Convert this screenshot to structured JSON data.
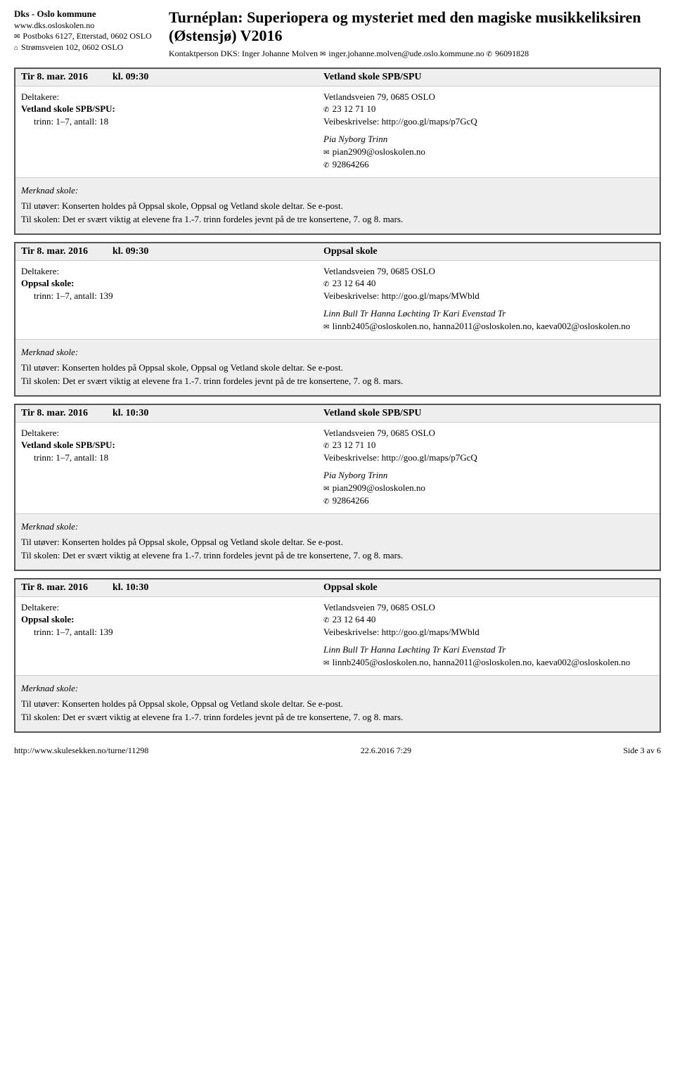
{
  "header": {
    "org_name": "Dks - Oslo kommune",
    "website": "www.dks.osloskolen.no",
    "postbox": "Postboks 6127, Etterstad, 0602 OSLO",
    "street": "Strømsveien 102, 0602 OSLO",
    "title": "Turnéplan: Superiopera og mysteriet med den magiske musikkeliksiren (Østensjø) V2016",
    "contact_label": "Kontaktperson DKS: Inger Johanne Molven",
    "contact_email": "inger.johanne.molven@ude.oslo.kommune.no",
    "contact_phone": "96091828"
  },
  "labels": {
    "deltakere": "Deltakere:",
    "merknad": "Merknad skole:"
  },
  "entries": [
    {
      "date": "Tir 8. mar. 2016",
      "time": "kl. 09:30",
      "school": "Vetland skole SPB/SPU",
      "school_line": "Vetland skole SPB/SPU:",
      "trinn": "trinn: 1–7, antall: 18",
      "address": "Vetlandsveien 79, 0685 OSLO",
      "phone": "23 12 71 10",
      "directions": "Veibeskrivelse: http://goo.gl/maps/p7GcQ",
      "contact_name": "Pia Nyborg Trinn",
      "contact_email": "pian2909@osloskolen.no",
      "contact_phone": "92864266",
      "note_performer": "Til utøver: Konserten holdes på Oppsal skole, Oppsal og Vetland skole deltar. Se e-post.",
      "note_school": "Til skolen: Det er svært viktig at elevene fra 1.-7. trinn fordeles jevnt på de tre konsertene, 7. og 8. mars."
    },
    {
      "date": "Tir 8. mar. 2016",
      "time": "kl. 09:30",
      "school": "Oppsal skole",
      "school_line": "Oppsal skole:",
      "trinn": "trinn: 1–7, antall: 139",
      "address": "Vetlandsveien 79, 0685 OSLO",
      "phone": "23 12 64 40",
      "directions": "Veibeskrivelse: http://goo.gl/maps/MWbld",
      "contact_name": "Linn Bull Tr Hanna Løchting Tr Kari Evenstad Tr",
      "contact_email": "linnb2405@osloskolen.no, hanna2011@osloskolen.no, kaeva002@osloskolen.no",
      "contact_phone": "",
      "note_performer": "Til utøver: Konserten holdes på Oppsal skole, Oppsal og Vetland skole deltar. Se e-post.",
      "note_school": "Til skolen: Det er svært viktig at elevene fra 1.-7. trinn fordeles jevnt på de tre konsertene, 7. og 8. mars."
    },
    {
      "date": "Tir 8. mar. 2016",
      "time": "kl. 10:30",
      "school": "Vetland skole SPB/SPU",
      "school_line": "Vetland skole SPB/SPU:",
      "trinn": "trinn: 1–7, antall: 18",
      "address": "Vetlandsveien 79, 0685 OSLO",
      "phone": "23 12 71 10",
      "directions": "Veibeskrivelse: http://goo.gl/maps/p7GcQ",
      "contact_name": "Pia Nyborg Trinn",
      "contact_email": "pian2909@osloskolen.no",
      "contact_phone": "92864266",
      "note_performer": "Til utøver: Konserten holdes på Oppsal skole, Oppsal og Vetland skole deltar. Se e-post.",
      "note_school": "Til skolen: Det er svært viktig at elevene fra 1.-7. trinn fordeles jevnt på de tre konsertene, 7. og 8. mars."
    },
    {
      "date": "Tir 8. mar. 2016",
      "time": "kl. 10:30",
      "school": "Oppsal skole",
      "school_line": "Oppsal skole:",
      "trinn": "trinn: 1–7, antall: 139",
      "address": "Vetlandsveien 79, 0685 OSLO",
      "phone": "23 12 64 40",
      "directions": "Veibeskrivelse: http://goo.gl/maps/MWbld",
      "contact_name": "Linn Bull Tr Hanna Løchting Tr Kari Evenstad Tr",
      "contact_email": "linnb2405@osloskolen.no, hanna2011@osloskolen.no, kaeva002@osloskolen.no",
      "contact_phone": "",
      "note_performer": "Til utøver: Konserten holdes på Oppsal skole, Oppsal og Vetland skole deltar. Se e-post.",
      "note_school": "Til skolen: Det er svært viktig at elevene fra 1.-7. trinn fordeles jevnt på de tre konsertene, 7. og 8. mars."
    }
  ],
  "footer": {
    "url": "http://www.skulesekken.no/turne/11298",
    "timestamp": "22.6.2016 7:29",
    "page": "Side 3 av 6"
  }
}
